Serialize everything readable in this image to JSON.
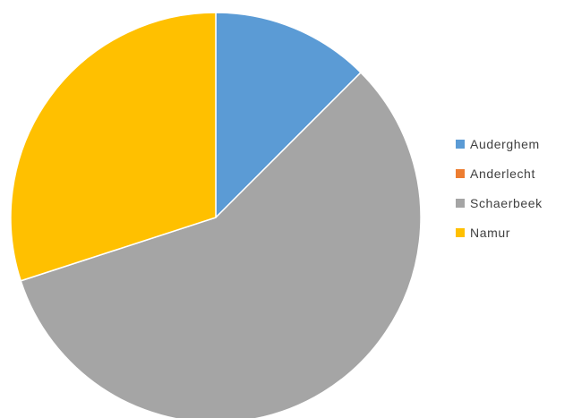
{
  "chart_data": {
    "type": "pie",
    "title": "",
    "legend_position": "right",
    "start_angle_deg": 0,
    "direction": "clockwise",
    "series": [
      {
        "categories": [
          "Auderghem",
          "Anderlecht",
          "Schaerbeek",
          "Namur"
        ],
        "values": [
          12.5,
          0,
          57.5,
          30
        ],
        "colors": [
          "#5B9BD5",
          "#ED7D31",
          "#A5A5A5",
          "#FFC000"
        ]
      }
    ]
  },
  "legend": {
    "items": [
      {
        "label": "Auderghem",
        "color": "#5B9BD5"
      },
      {
        "label": "Anderlecht",
        "color": "#ED7D31"
      },
      {
        "label": "Schaerbeek",
        "color": "#A5A5A5"
      },
      {
        "label": "Namur",
        "color": "#FFC000"
      }
    ]
  }
}
